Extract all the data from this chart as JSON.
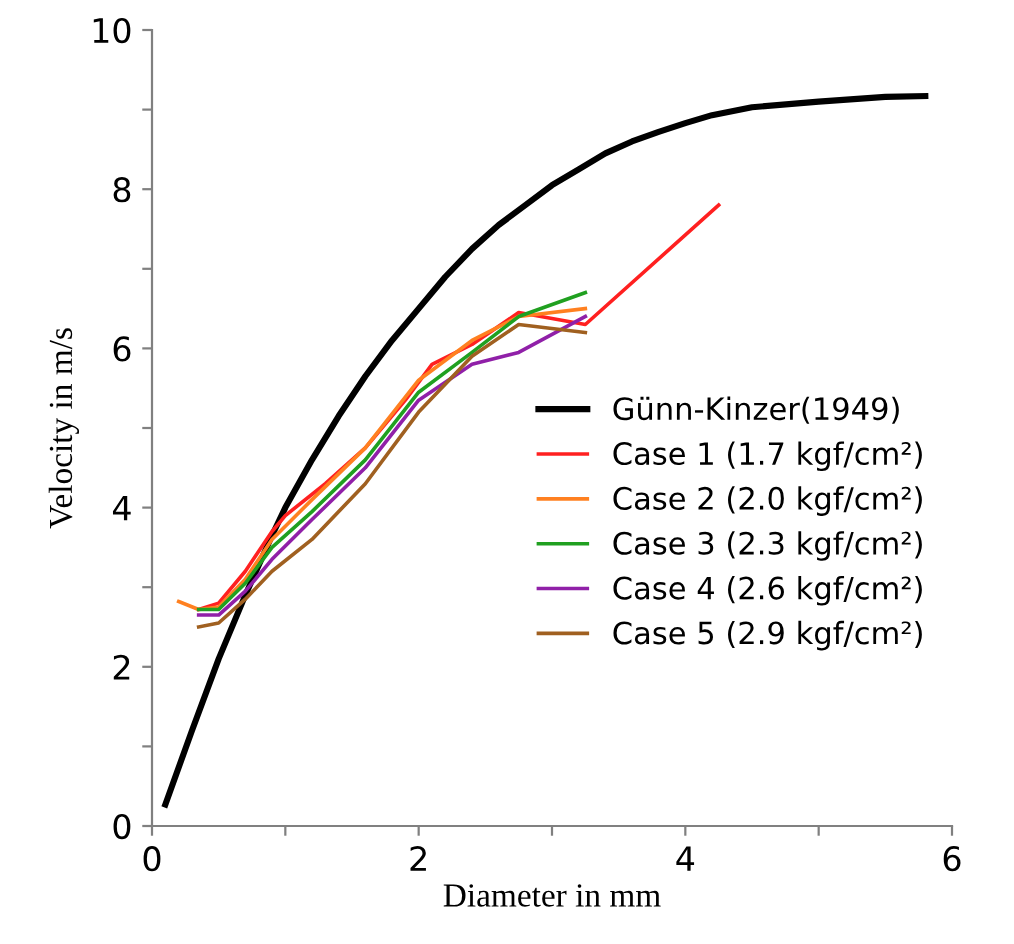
{
  "chart_data": {
    "type": "line",
    "xlabel": "Diameter in mm",
    "ylabel": "Velocity in m/s",
    "xlim": [
      0,
      6
    ],
    "ylim": [
      0,
      10
    ],
    "xticks": [
      0,
      {
        "value": 1,
        "label": null
      },
      2,
      {
        "value": 3,
        "label": null
      },
      4,
      {
        "value": 5,
        "label": null
      },
      6
    ],
    "yticks": [
      0,
      {
        "value": 1,
        "label": null
      },
      2,
      {
        "value": 3,
        "label": null
      },
      4,
      {
        "value": 5,
        "label": null
      },
      6,
      {
        "value": 7,
        "label": null
      },
      8,
      {
        "value": 9,
        "label": null
      },
      10
    ],
    "grid": false,
    "legend": "right",
    "marker": "none",
    "line_style": "solid",
    "series": [
      {
        "name": "Günn-Kinzer(1949)",
        "color": "#000000",
        "x": [
          0.1,
          0.3,
          0.5,
          0.7,
          0.9,
          1.0,
          1.2,
          1.4,
          1.6,
          1.8,
          2.0,
          2.2,
          2.4,
          2.6,
          2.8,
          3.0,
          3.2,
          3.4,
          3.6,
          3.8,
          4.0,
          4.2,
          4.5,
          5.0,
          5.5,
          5.8
        ],
        "values": [
          0.27,
          1.2,
          2.1,
          2.9,
          3.65,
          4.0,
          4.6,
          5.15,
          5.65,
          6.1,
          6.5,
          6.9,
          7.25,
          7.55,
          7.8,
          8.05,
          8.25,
          8.45,
          8.6,
          8.72,
          8.83,
          8.93,
          9.03,
          9.1,
          9.16,
          9.17
        ]
      },
      {
        "name": "Case 1 (1.7 kgf/cm²)",
        "color": "#ff2020",
        "x": [
          0.35,
          0.5,
          0.7,
          0.9,
          1.0,
          1.3,
          1.6,
          1.9,
          2.1,
          2.4,
          2.75,
          3.25,
          4.25
        ],
        "values": [
          2.72,
          2.8,
          3.2,
          3.7,
          3.9,
          4.3,
          4.75,
          5.35,
          5.8,
          6.05,
          6.45,
          6.3,
          7.8
        ]
      },
      {
        "name": "Case 2 (2.0 kgf/cm²)",
        "color": "#ff8020",
        "x": [
          0.2,
          0.35,
          0.5,
          0.7,
          0.9,
          1.2,
          1.6,
          2.0,
          2.4,
          2.75,
          3.25
        ],
        "values": [
          2.82,
          2.72,
          2.75,
          3.1,
          3.6,
          4.1,
          4.75,
          5.6,
          6.1,
          6.4,
          6.5
        ]
      },
      {
        "name": "Case 3 (2.3 kgf/cm²)",
        "color": "#20a020",
        "x": [
          0.35,
          0.5,
          0.7,
          0.9,
          1.2,
          1.6,
          2.0,
          2.4,
          2.75,
          3.25
        ],
        "values": [
          2.72,
          2.72,
          3.05,
          3.5,
          3.95,
          4.6,
          5.45,
          5.95,
          6.4,
          6.7
        ]
      },
      {
        "name": "Case 4 (2.6 kgf/cm²)",
        "color": "#9020a8",
        "x": [
          0.35,
          0.5,
          0.7,
          0.9,
          1.2,
          1.6,
          2.0,
          2.4,
          2.75,
          3.25
        ],
        "values": [
          2.65,
          2.65,
          2.95,
          3.35,
          3.85,
          4.5,
          5.35,
          5.8,
          5.95,
          6.4
        ]
      },
      {
        "name": "Case 5 (2.9 kgf/cm²)",
        "color": "#a06020",
        "x": [
          0.35,
          0.5,
          0.7,
          0.9,
          1.2,
          1.6,
          2.0,
          2.4,
          2.75,
          3.25
        ],
        "values": [
          2.5,
          2.55,
          2.85,
          3.2,
          3.6,
          4.3,
          5.2,
          5.9,
          6.3,
          6.2
        ]
      }
    ]
  }
}
